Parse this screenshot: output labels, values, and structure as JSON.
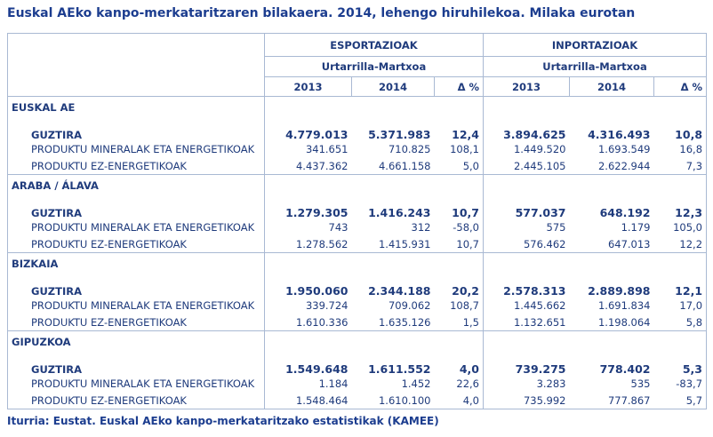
{
  "title": "Euskal AEko kanpo-merkataritzaren bilakaera. 2014, lehengo hiruhilekoa. Milaka eurotan",
  "header": {
    "groups": [
      "ESPORTAZIOAK",
      "INPORTAZIOAK"
    ],
    "period": [
      "Urtarrilla-Martxoa",
      "Urtarrilla-Martxoa"
    ],
    "columns": [
      "2013",
      "2014",
      "Δ %",
      "2013",
      "2014",
      "Δ %"
    ]
  },
  "sections": [
    {
      "name": "EUSKAL AE",
      "rows": [
        {
          "label": "GUZTIRA",
          "values": [
            "4.779.013",
            "5.371.983",
            "12,4",
            "3.894.625",
            "4.316.493",
            "10,8"
          ]
        },
        {
          "label": "PRODUKTU MINERALAK ETA ENERGETIKOAK",
          "values": [
            "341.651",
            "710.825",
            "108,1",
            "1.449.520",
            "1.693.549",
            "16,8"
          ]
        },
        {
          "label": "PRODUKTU EZ-ENERGETIKOAK",
          "values": [
            "4.437.362",
            "4.661.158",
            "5,0",
            "2.445.105",
            "2.622.944",
            "7,3"
          ]
        }
      ]
    },
    {
      "name": "ARABA / ÁLAVA",
      "rows": [
        {
          "label": "GUZTIRA",
          "values": [
            "1.279.305",
            "1.416.243",
            "10,7",
            "577.037",
            "648.192",
            "12,3"
          ]
        },
        {
          "label": "PRODUKTU MINERALAK ETA ENERGETIKOAK",
          "values": [
            "743",
            "312",
            "-58,0",
            "575",
            "1.179",
            "105,0"
          ]
        },
        {
          "label": "PRODUKTU EZ-ENERGETIKOAK",
          "values": [
            "1.278.562",
            "1.415.931",
            "10,7",
            "576.462",
            "647.013",
            "12,2"
          ]
        }
      ]
    },
    {
      "name": "BIZKAIA",
      "rows": [
        {
          "label": "GUZTIRA",
          "values": [
            "1.950.060",
            "2.344.188",
            "20,2",
            "2.578.313",
            "2.889.898",
            "12,1"
          ]
        },
        {
          "label": "PRODUKTU MINERALAK ETA ENERGETIKOAK",
          "values": [
            "339.724",
            "709.062",
            "108,7",
            "1.445.662",
            "1.691.834",
            "17,0"
          ]
        },
        {
          "label": "PRODUKTU EZ-ENERGETIKOAK",
          "values": [
            "1.610.336",
            "1.635.126",
            "1,5",
            "1.132.651",
            "1.198.064",
            "5,8"
          ]
        }
      ]
    },
    {
      "name": "GIPUZKOA",
      "rows": [
        {
          "label": "GUZTIRA",
          "values": [
            "1.549.648",
            "1.611.552",
            "4,0",
            "739.275",
            "778.402",
            "5,3"
          ]
        },
        {
          "label": "PRODUKTU MINERALAK ETA ENERGETIKOAK",
          "values": [
            "1.184",
            "1.452",
            "22,6",
            "3.283",
            "535",
            "-83,7"
          ]
        },
        {
          "label": "PRODUKTU EZ-ENERGETIKOAK",
          "values": [
            "1.548.464",
            "1.610.100",
            "4,0",
            "735.992",
            "777.867",
            "5,7"
          ]
        }
      ]
    }
  ],
  "source": "Iturria: Eustat. Euskal AEko kanpo-merkataritzako estatistikak (KAMEE)"
}
